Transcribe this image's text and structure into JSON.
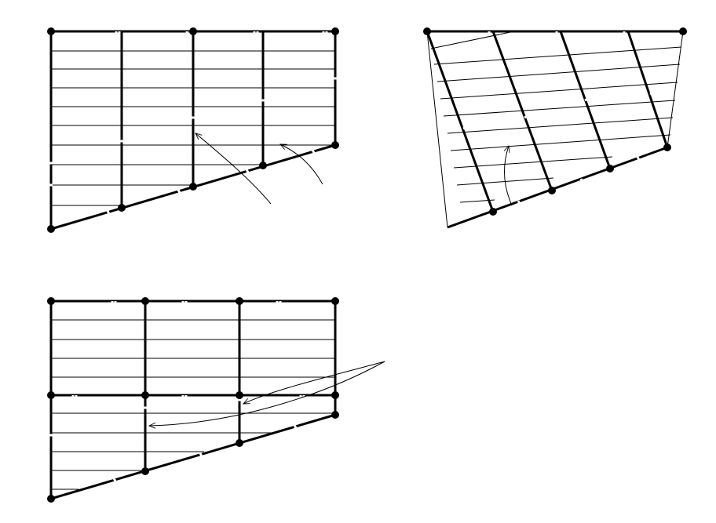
{
  "figure": {
    "panels": [
      {
        "name": "trapezoid-grid-vertical-beams"
      },
      {
        "name": "trapezoid-grid-skewed-beams"
      },
      {
        "name": "trapezoid-grid-two-bay"
      }
    ],
    "colors": {
      "line": "#000000",
      "background": "#ffffff"
    }
  }
}
